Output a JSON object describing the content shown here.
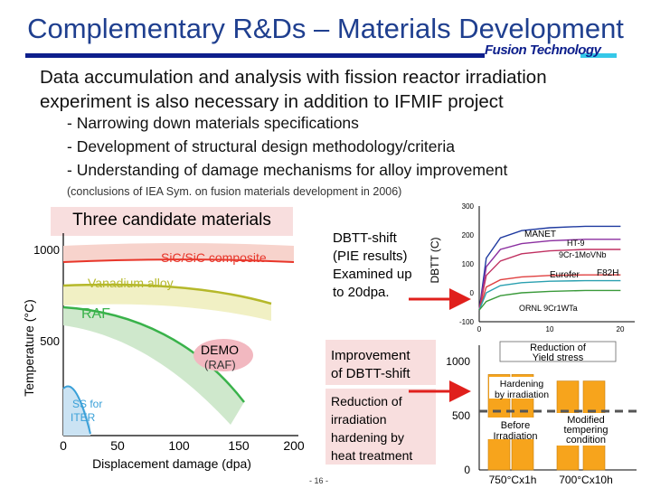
{
  "header": {
    "title": "Complementary R&Ds – Materials Development",
    "brand": "Fusion Technology"
  },
  "intro": {
    "line1": "Data accumulation and analysis with fission reactor irradiation",
    "line2": "experiment is also necessary in addition to IFMIF project"
  },
  "bullets": [
    "- Narrowing down materials specifications",
    "- Development of structural design methodology/criteria",
    "- Understanding of damage mechanisms for alloy improvement"
  ],
  "note": "(conclusions of IEA Sym. on fusion materials development in 2006)",
  "candidates_label": "Three candidate materials",
  "callouts": {
    "dbtt": [
      "DBTT-shift",
      "(PIE results)",
      "Examined up",
      "to 20dpa."
    ],
    "improvement": [
      "Improvement",
      "of DBTT-shift"
    ],
    "reduction": [
      "Reduction of",
      "irradiation",
      "hardening by",
      "heat treatment"
    ]
  },
  "page_number": "- 16 -",
  "colors": {
    "title": "#1f3f8f",
    "sic": "#e8362a",
    "vanadium": "#b5b82a",
    "raf": "#39b24a",
    "ss": "#3aa0d8",
    "demo": "#f2b8c0",
    "arrow": "#e0201c",
    "bar_orange": "#f7a41c"
  },
  "chart_data": [
    {
      "type": "area",
      "xlabel": "Displacement damage (dpa)",
      "ylabel": "Temperature (°C)",
      "xlim": [
        0,
        200
      ],
      "ylim": [
        0,
        1100
      ],
      "x_ticks": [
        "0",
        "50",
        "100",
        "150",
        "200"
      ],
      "y_ticks": [
        "1000",
        "500"
      ],
      "series": [
        {
          "name": "SiC/SiC composite",
          "color": "#e8362a"
        },
        {
          "name": "Vanadium alloy",
          "color": "#b5b82a"
        },
        {
          "name": "RAF",
          "color": "#39b24a"
        },
        {
          "name": "SS for ITER",
          "color": "#3aa0d8"
        }
      ],
      "annotations": [
        "DEMO",
        "(RAF)"
      ]
    },
    {
      "type": "line",
      "ylabel": "DBTT (C)",
      "xlim": [
        0,
        22
      ],
      "ylim": [
        -100,
        300
      ],
      "x_ticks": [
        "0",
        "10",
        "20"
      ],
      "y_ticks": [
        "300",
        "200",
        "100",
        "0",
        "-100"
      ],
      "series": [
        {
          "name": "MANET",
          "x": [
            0,
            1,
            3,
            6,
            10,
            15,
            20
          ],
          "y": [
            -60,
            120,
            190,
            215,
            225,
            230,
            230
          ],
          "color": "#1f3aa0"
        },
        {
          "name": "HT-9",
          "x": [
            0,
            1,
            3,
            6,
            10,
            15,
            20
          ],
          "y": [
            -60,
            90,
            150,
            170,
            180,
            185,
            185
          ],
          "color": "#8b2fa0"
        },
        {
          "name": "9Cr-1MoVNb",
          "x": [
            0,
            1,
            3,
            6,
            10,
            15,
            20
          ],
          "y": [
            -60,
            60,
            110,
            135,
            145,
            150,
            150
          ],
          "color": "#c03060"
        },
        {
          "name": "Eurofer",
          "x": [
            0,
            1,
            3,
            6,
            10,
            15,
            20
          ],
          "y": [
            -60,
            20,
            45,
            55,
            60,
            62,
            62
          ],
          "color": "#e04040"
        },
        {
          "name": "F82H",
          "x": [
            0,
            1,
            3,
            6,
            10,
            15,
            20
          ],
          "y": [
            -60,
            0,
            25,
            35,
            40,
            42,
            42
          ],
          "color": "#2aa0b0"
        },
        {
          "name": "ORNL 9Cr1WTa",
          "x": [
            0,
            1,
            3,
            6,
            10,
            15,
            20
          ],
          "y": [
            -60,
            -30,
            -10,
            0,
            5,
            8,
            8
          ],
          "color": "#3a9a3a"
        }
      ]
    },
    {
      "type": "bar",
      "title": "Reduction of Yield stress",
      "categories": [
        "750°Cx1h",
        "700°Cx10h"
      ],
      "ylim": [
        0,
        1000
      ],
      "y_ticks": [
        "1000",
        "500",
        "0"
      ],
      "series": [
        {
          "name": "Before Irradiation",
          "values": [
            480,
            430
          ]
        },
        {
          "name": "Hardening by irradiation",
          "values": [
            880,
            820
          ]
        }
      ],
      "annotations": [
        "Hardening by irradiation",
        "Before Irradiation",
        "Modified tempering condition"
      ]
    }
  ]
}
